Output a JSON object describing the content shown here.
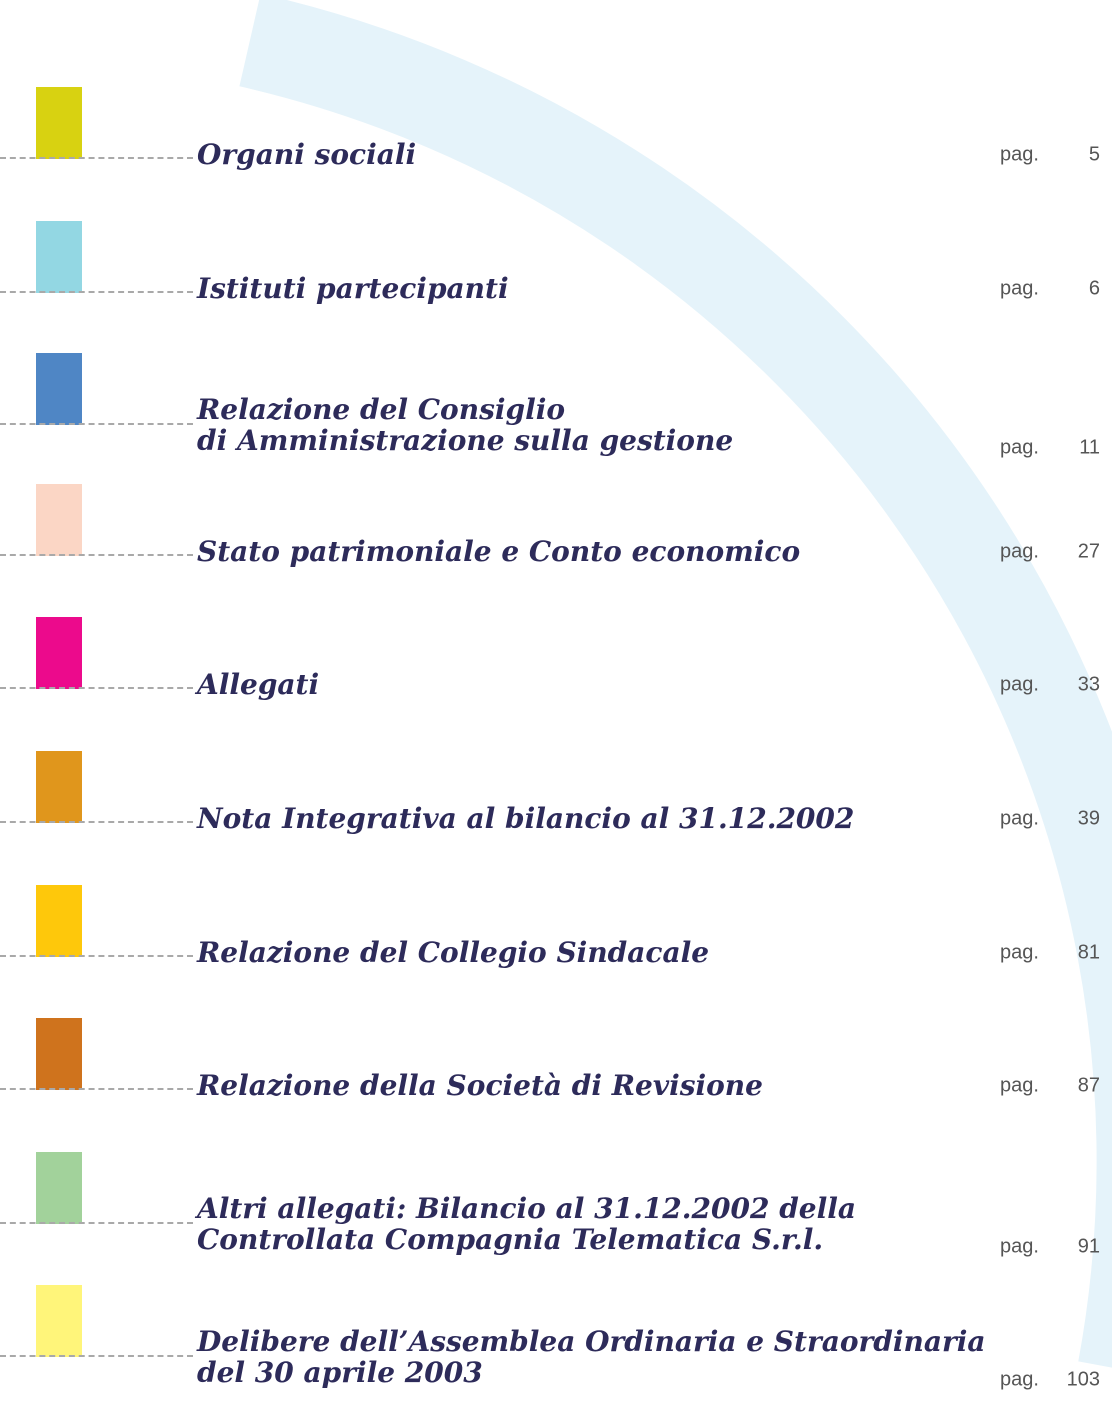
{
  "toc": {
    "entries": [
      {
        "lines": [
          "Organi sociali"
        ],
        "page_label": "pag.",
        "page": "5"
      },
      {
        "lines": [
          "Istituti partecipanti"
        ],
        "page_label": "pag.",
        "page": "6"
      },
      {
        "lines": [
          "Relazione del Consiglio",
          "di Amministrazione sulla gestione"
        ],
        "page_label": "pag.",
        "page": "11"
      },
      {
        "lines": [
          "Stato patrimoniale e Conto economico"
        ],
        "page_label": "pag.",
        "page": "27"
      },
      {
        "lines": [
          "Allegati"
        ],
        "page_label": "pag.",
        "page": "33"
      },
      {
        "lines": [
          "Nota Integrativa al bilancio al 31.12.2002"
        ],
        "page_label": "pag.",
        "page": "39"
      },
      {
        "lines": [
          "Relazione del Collegio Sindacale"
        ],
        "page_label": "pag.",
        "page": "81"
      },
      {
        "lines": [
          "Relazione della Società di Revisione"
        ],
        "page_label": "pag.",
        "page": "87"
      },
      {
        "lines": [
          "Altri allegati: Bilancio al 31.12.2002 della",
          "Controllata Compagnia Telematica S.r.l."
        ],
        "page_label": "pag.",
        "page": "91"
      },
      {
        "lines": [
          "Delibere dell’Assemblea Ordinaria e Straordinaria",
          "del 30 aprile 2003"
        ],
        "page_label": "pag.",
        "page": "103"
      }
    ]
  }
}
